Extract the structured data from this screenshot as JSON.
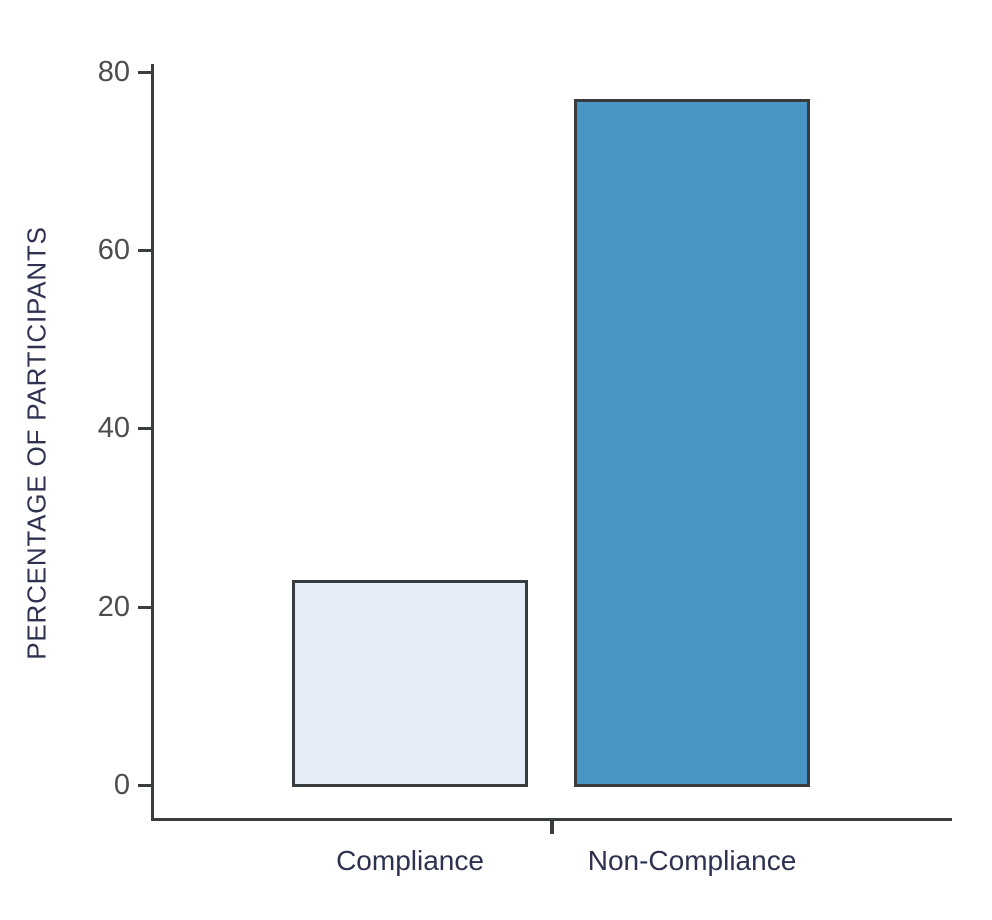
{
  "chart_data": {
    "type": "bar",
    "title": "",
    "categories": [
      "Compliance",
      "Non-Compliance"
    ],
    "values": [
      23,
      77
    ],
    "series": [
      {
        "name": "Percentage of participants",
        "values": [
          23,
          77
        ]
      }
    ],
    "xlabel": "",
    "ylabel": "PERCENTAGE OF PARTICIPANTS",
    "ylim": [
      0,
      80
    ],
    "yticks": [
      0,
      20,
      40,
      60,
      80
    ],
    "grid": false,
    "legend_position": "none",
    "bar_fill_colors": [
      "#e4edf7",
      "#4895c6"
    ],
    "bar_border_color": "#393c3f",
    "axis_color": "#3a3d40",
    "tick_label_color": "#4d4d4d",
    "text_color": "#2e3150",
    "background_color": "#ffffff"
  }
}
